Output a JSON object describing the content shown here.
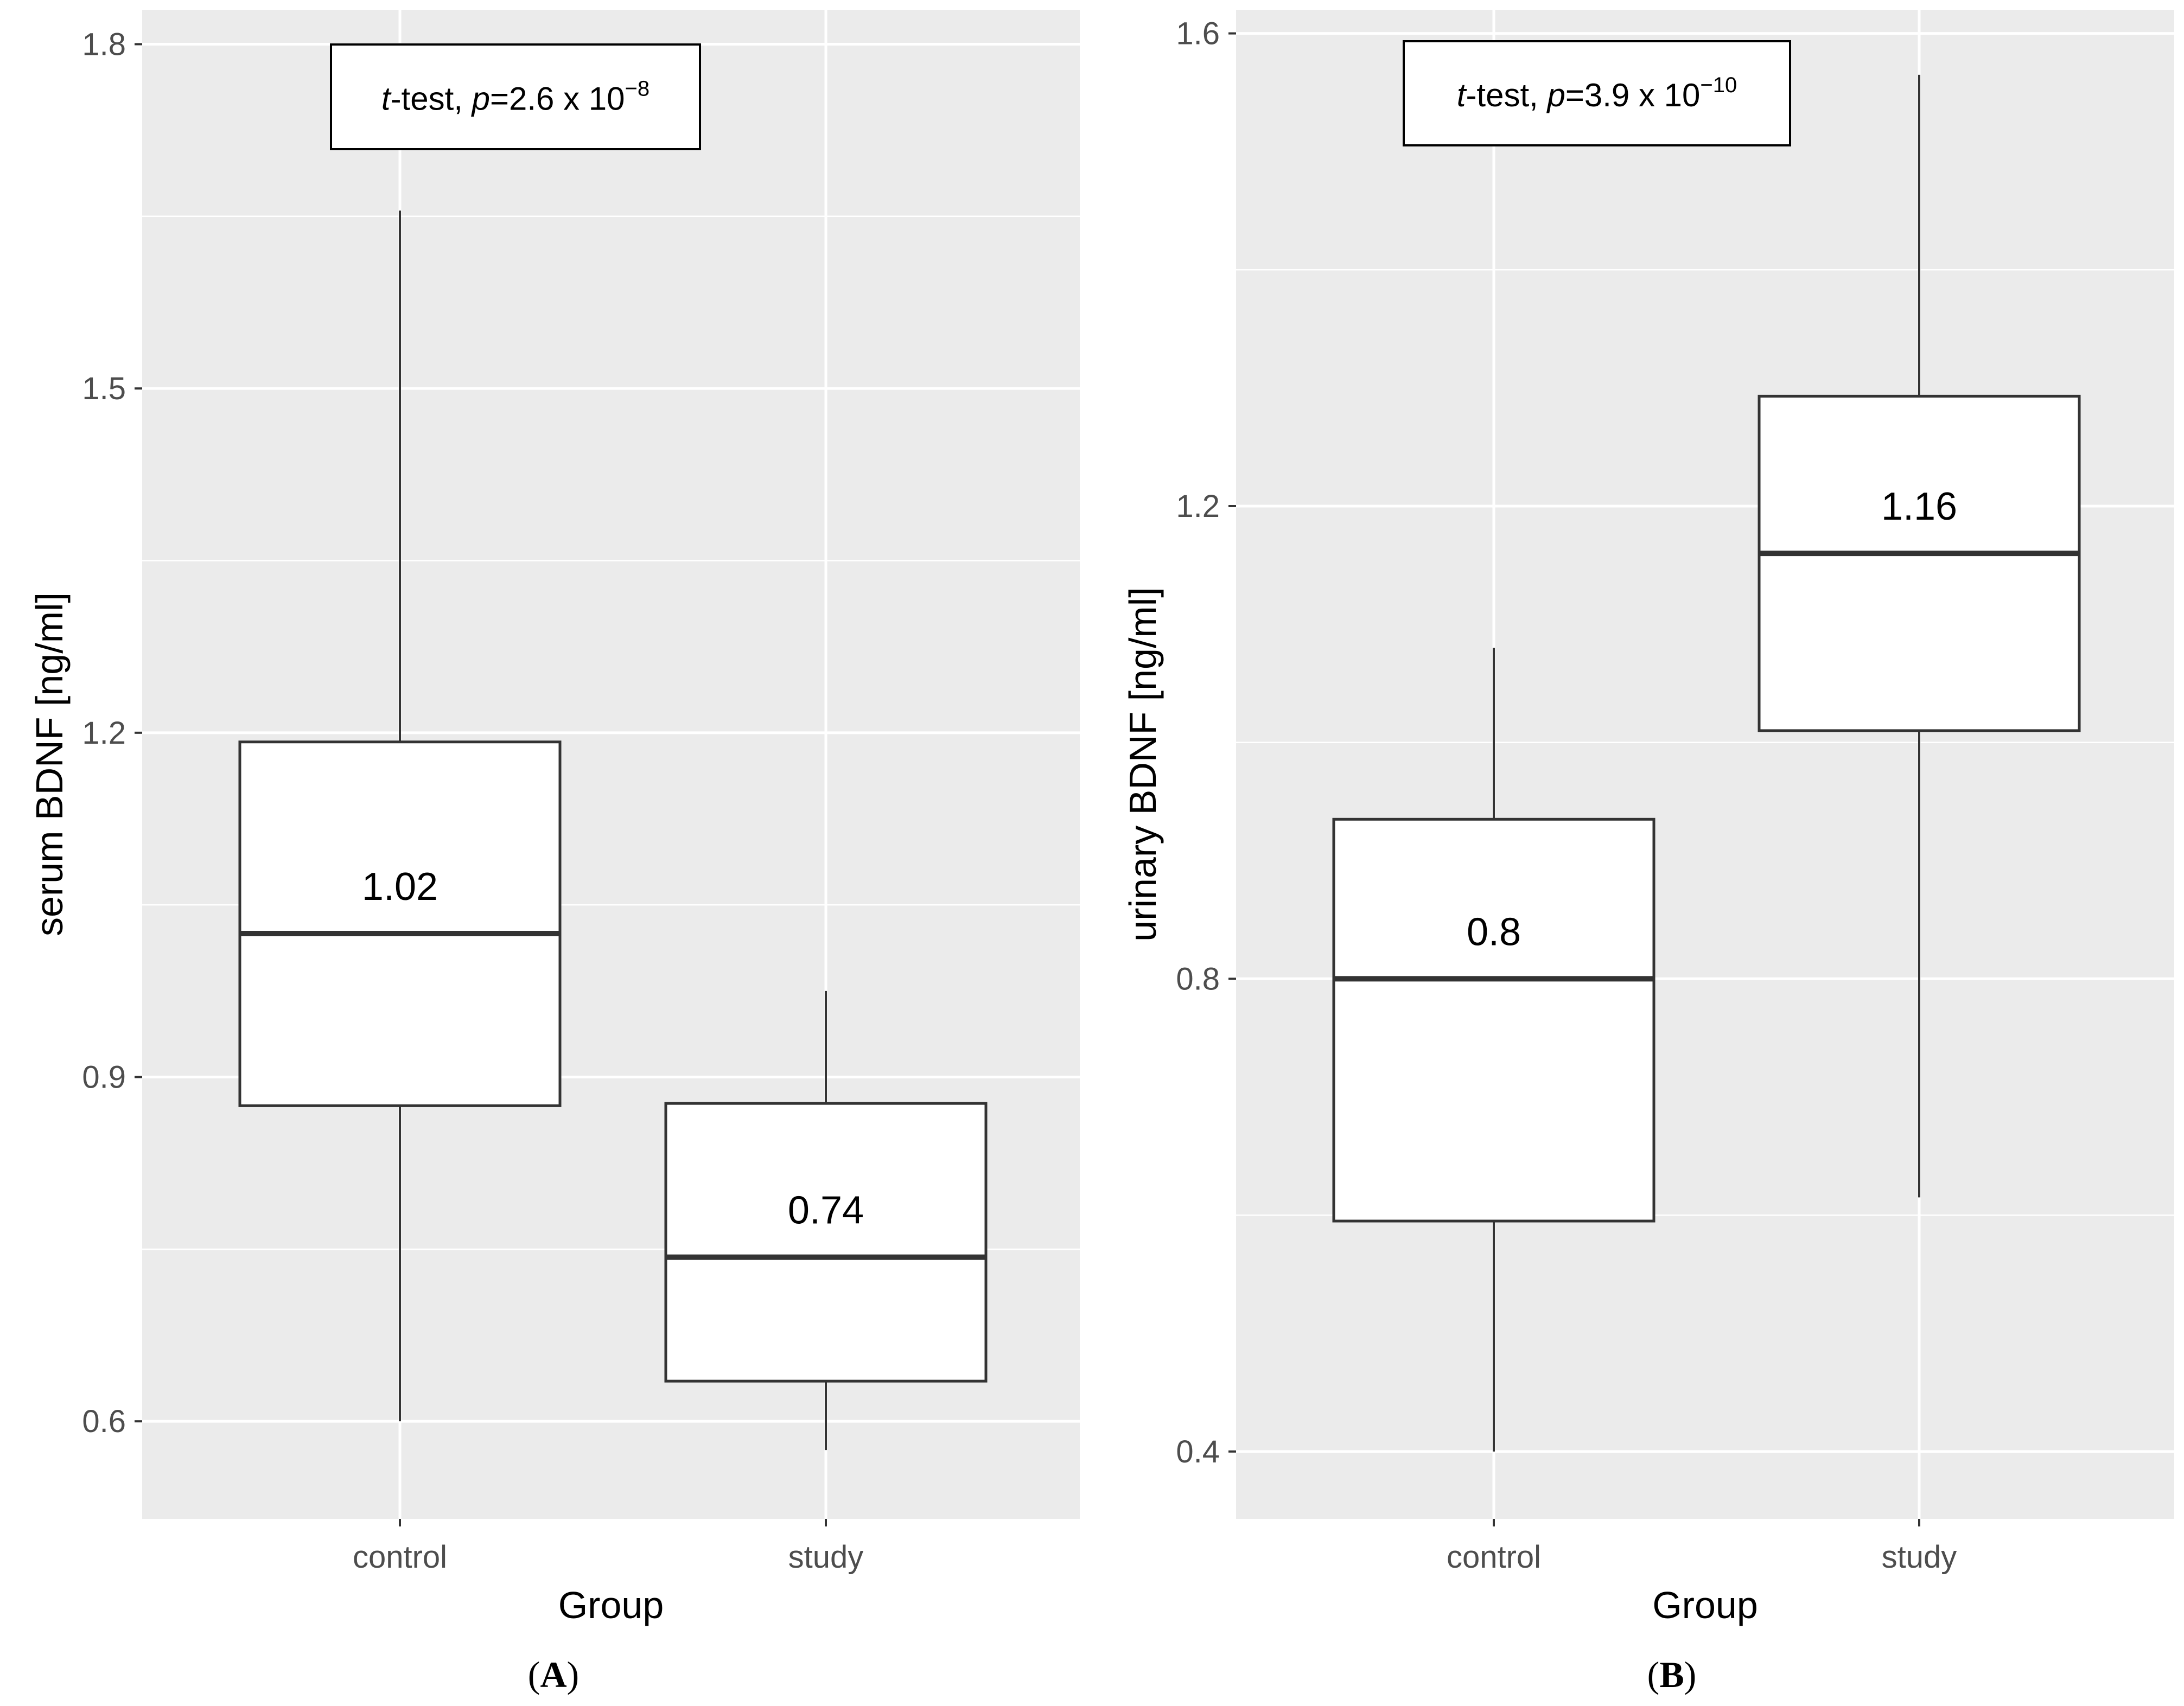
{
  "chart_data": [
    {
      "type": "box",
      "panel_label": "A",
      "xlabel": "Group",
      "ylabel": "serum BDNF [ng/ml]",
      "categories": [
        "control",
        "study"
      ],
      "ylim": [
        0.515,
        1.83
      ],
      "yticks": [
        0.6,
        0.9,
        1.2,
        1.5,
        1.8
      ],
      "ytick_labels": [
        "0.6",
        "0.9",
        "1.2",
        "1.5",
        "1.8"
      ],
      "minor_yticks": [
        0.75,
        1.05,
        1.35,
        1.65
      ],
      "boxes": [
        {
          "category": "control",
          "whisker_low": 0.6,
          "q1": 0.875,
          "median": 1.025,
          "q3": 1.192,
          "whisker_high": 1.655,
          "median_label": "1.02"
        },
        {
          "category": "study",
          "whisker_low": 0.575,
          "q1": 0.635,
          "median": 0.743,
          "q3": 0.877,
          "whisker_high": 0.975,
          "median_label": "0.74"
        }
      ],
      "annotation": {
        "t": "t",
        "test": "-test, ",
        "p": "p",
        "eq": "=2.6 x 10",
        "exp": "−8"
      },
      "grid": true,
      "background": "#ebebeb"
    },
    {
      "type": "box",
      "panel_label": "B",
      "xlabel": "Group",
      "ylabel": "urinary BDNF [ng/ml]",
      "categories": [
        "control",
        "study"
      ],
      "ylim": [
        0.343,
        1.62
      ],
      "yticks": [
        0.4,
        0.8,
        1.2,
        1.6
      ],
      "ytick_labels": [
        "0.4",
        "0.8",
        "1.2",
        "1.6"
      ],
      "minor_yticks": [
        0.6,
        1.0,
        1.4
      ],
      "boxes": [
        {
          "category": "control",
          "whisker_low": 0.4,
          "q1": 0.595,
          "median": 0.8,
          "q3": 0.935,
          "whisker_high": 1.08,
          "median_label": "0.8"
        },
        {
          "category": "study",
          "whisker_low": 0.615,
          "q1": 1.01,
          "median": 1.16,
          "q3": 1.293,
          "whisker_high": 1.565,
          "median_label": "1.16"
        }
      ],
      "annotation": {
        "t": "t",
        "test": "-test, ",
        "p": "p",
        "eq": "=3.9 x 10",
        "exp": "−10"
      },
      "grid": true,
      "background": "#ebebeb"
    }
  ],
  "colors": {
    "panel_background": "#ebebeb",
    "grid": "#ffffff",
    "box_fill": "#ffffff",
    "box_stroke": "#333333",
    "median_line": "#333333"
  }
}
